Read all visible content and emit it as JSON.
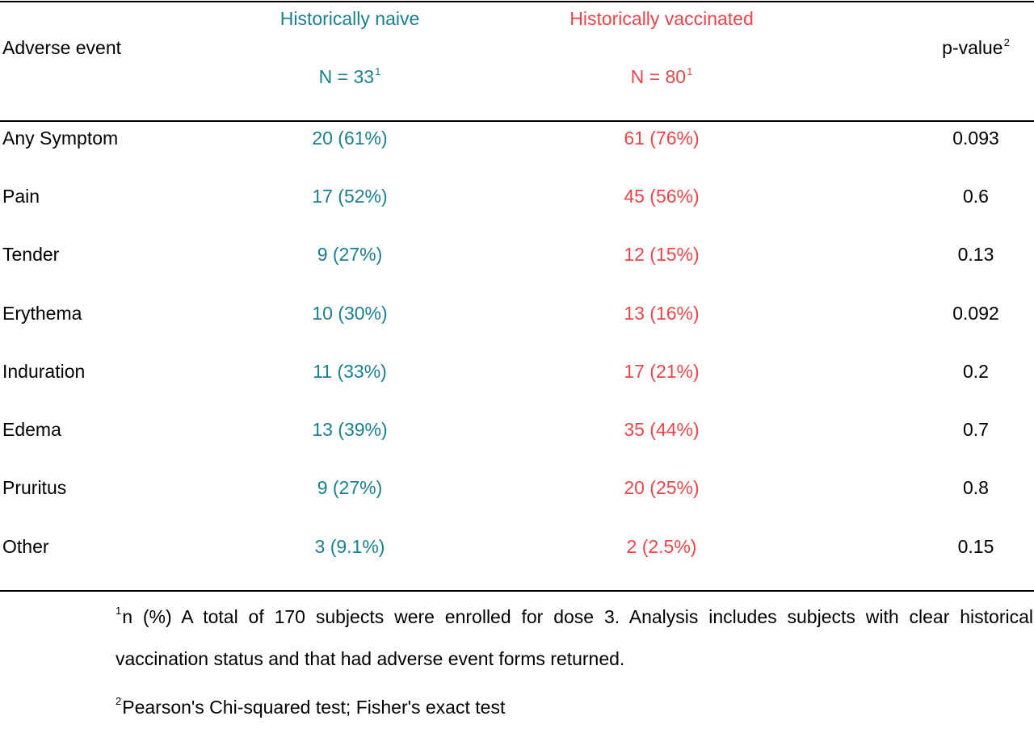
{
  "colors": {
    "naive": "#1a7f8e",
    "vaccinated": "#e8464a",
    "text": "#000000"
  },
  "header": {
    "adverse_event": "Adverse event",
    "naive_title": "Historically naive",
    "naive_n": "N = 33",
    "naive_n_sup": "1",
    "vaccinated_title": "Historically vaccinated",
    "vaccinated_n": "N = 80",
    "vaccinated_n_sup": "1",
    "pvalue": "p-value",
    "pvalue_sup": "2"
  },
  "rows": [
    {
      "event": "Any Symptom",
      "naive": "20 (61%)",
      "vaccinated": "61 (76%)",
      "p": "0.093"
    },
    {
      "event": "Pain",
      "naive": "17 (52%)",
      "vaccinated": "45 (56%)",
      "p": "0.6"
    },
    {
      "event": "Tender",
      "naive": "9 (27%)",
      "vaccinated": "12 (15%)",
      "p": "0.13"
    },
    {
      "event": "Erythema",
      "naive": "10 (30%)",
      "vaccinated": "13 (16%)",
      "p": "0.092"
    },
    {
      "event": "Induration",
      "naive": "11 (33%)",
      "vaccinated": "17 (21%)",
      "p": "0.2"
    },
    {
      "event": "Edema",
      "naive": "13 (39%)",
      "vaccinated": "35 (44%)",
      "p": "0.7"
    },
    {
      "event": "Pruritus",
      "naive": "9 (27%)",
      "vaccinated": "20 (25%)",
      "p": "0.8"
    },
    {
      "event": "Other",
      "naive": "3 (9.1%)",
      "vaccinated": "2 (2.5%)",
      "p": "0.15"
    }
  ],
  "footnotes": [
    {
      "sup": "1",
      "text": "n (%) A total of 170 subjects were enrolled for dose 3. Analysis includes subjects with clear historical vaccination status and that had adverse event forms returned."
    },
    {
      "sup": "2",
      "text": "Pearson's Chi-squared test; Fisher's exact test"
    }
  ]
}
